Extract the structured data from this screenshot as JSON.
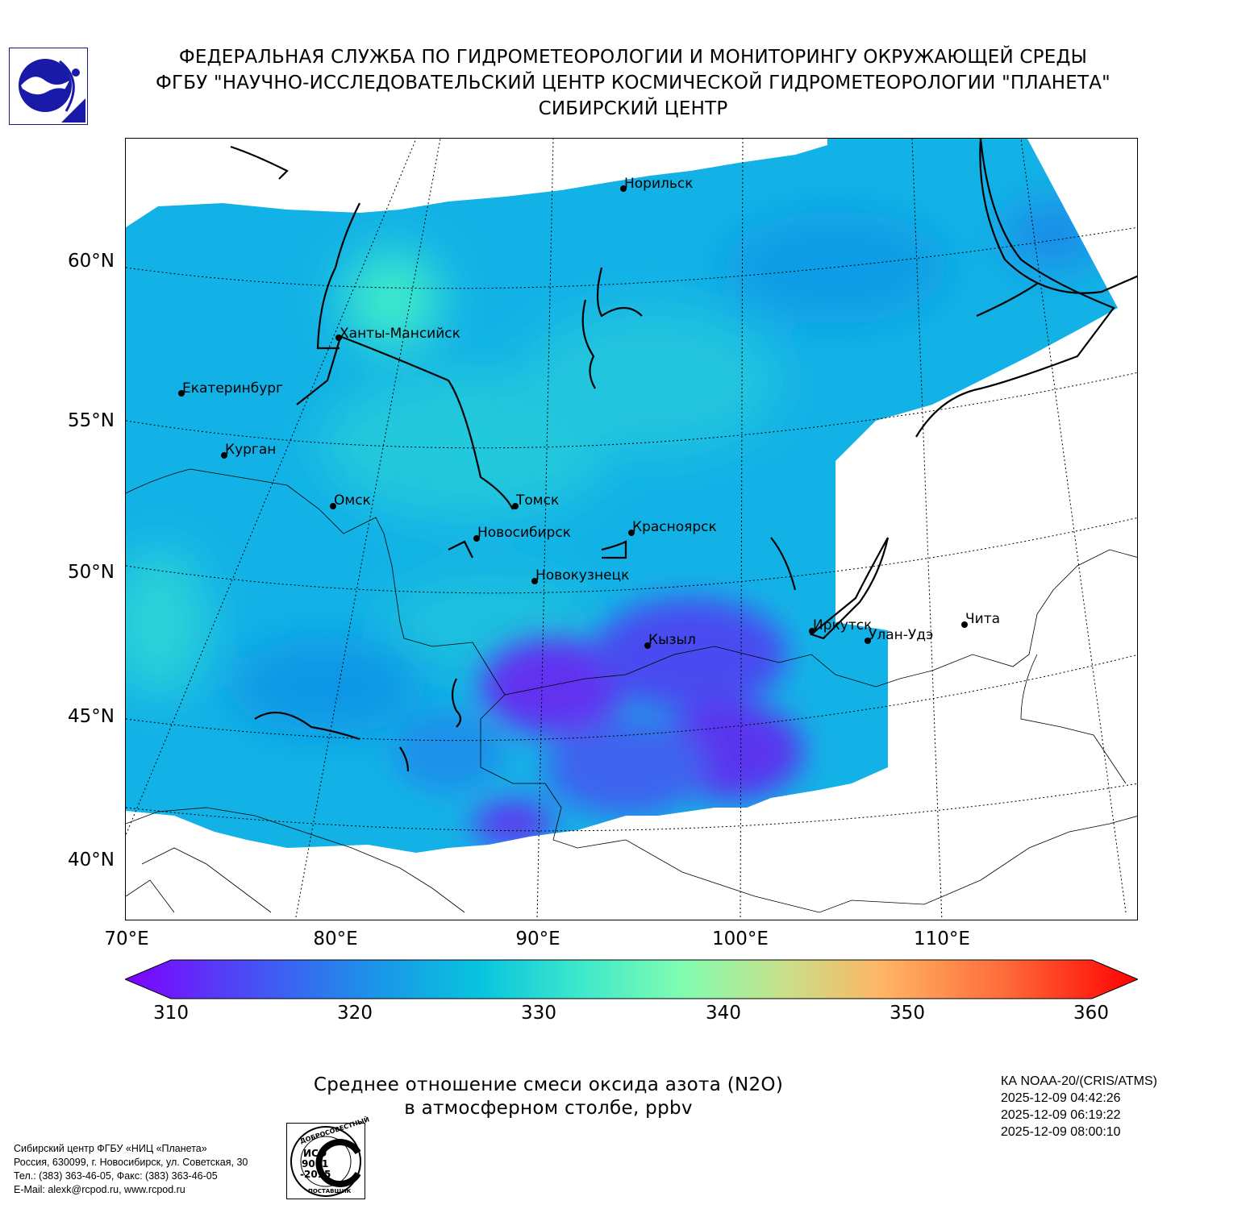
{
  "header": {
    "line1": "ФЕДЕРАЛЬНАЯ СЛУЖБА ПО ГИДРОМЕТЕОРОЛОГИИ И МОНИТОРИНГУ ОКРУЖАЮЩЕЙ СРЕДЫ",
    "line2": "ФГБУ \"НАУЧНО-ИССЛЕДОВАТЕЛЬСКИЙ ЦЕНТР КОСМИЧЕСКОЙ ГИДРОМЕТЕОРОЛОГИИ \"ПЛАНЕТА\"",
    "line3": "СИБИРСКИЙ ЦЕНТР",
    "logo_icon": "planeta-logo-icon"
  },
  "map": {
    "lat_labels": [
      "60°N",
      "55°N",
      "50°N",
      "45°N",
      "40°N"
    ],
    "lon_labels": [
      "70°E",
      "80°E",
      "90°E",
      "100°E",
      "110°E"
    ],
    "cities": [
      {
        "name": "Норильск"
      },
      {
        "name": "Ханты-Мансийск"
      },
      {
        "name": "Екатеринбург"
      },
      {
        "name": "Курган"
      },
      {
        "name": "Омск"
      },
      {
        "name": "Томск"
      },
      {
        "name": "Новосибирск"
      },
      {
        "name": "Красноярск"
      },
      {
        "name": "Новокузнецк"
      },
      {
        "name": "Кызыл"
      },
      {
        "name": "Иркутск"
      },
      {
        "name": "Улан-Удэ"
      },
      {
        "name": "Чита"
      }
    ],
    "colors": {
      "field_base": "#12b4e8",
      "low": "#6a2cf0",
      "high": "#3ee6c8"
    }
  },
  "colorbar": {
    "ticks": [
      "310",
      "320",
      "330",
      "340",
      "350",
      "360"
    ],
    "min": 310,
    "max": 360,
    "extend": "both",
    "colormap": "rainbow"
  },
  "title": {
    "line1": "Среднее отношение смеси оксида азота (N2O)",
    "line2": "в атмосферном столбе, ppbv"
  },
  "satellite": {
    "name": "КА NOAA-20/(CRIS/ATMS)",
    "passes": [
      "2025-12-09 04:42:26",
      "2025-12-09 06:19:22",
      "2025-12-09 08:00:10"
    ]
  },
  "footer": {
    "org": "Сибирский центр ФГБУ «НИЦ «Планета»",
    "address": "Россия, 630099, г. Новосибирск, ул. Советская, 30",
    "phone": "Тел.: (383) 363-46-05, Факс: (383) 363-46-05",
    "email": "E-Mail: alexk@rcpod.ru, www.rcpod.ru"
  },
  "iso_badge": {
    "top": "ДОБРОСОВЕСТНЫЙ",
    "line1": "ИСО",
    "line2": "9001",
    "line3": "-2015",
    "bottom": "ПОСТАВЩИК"
  }
}
